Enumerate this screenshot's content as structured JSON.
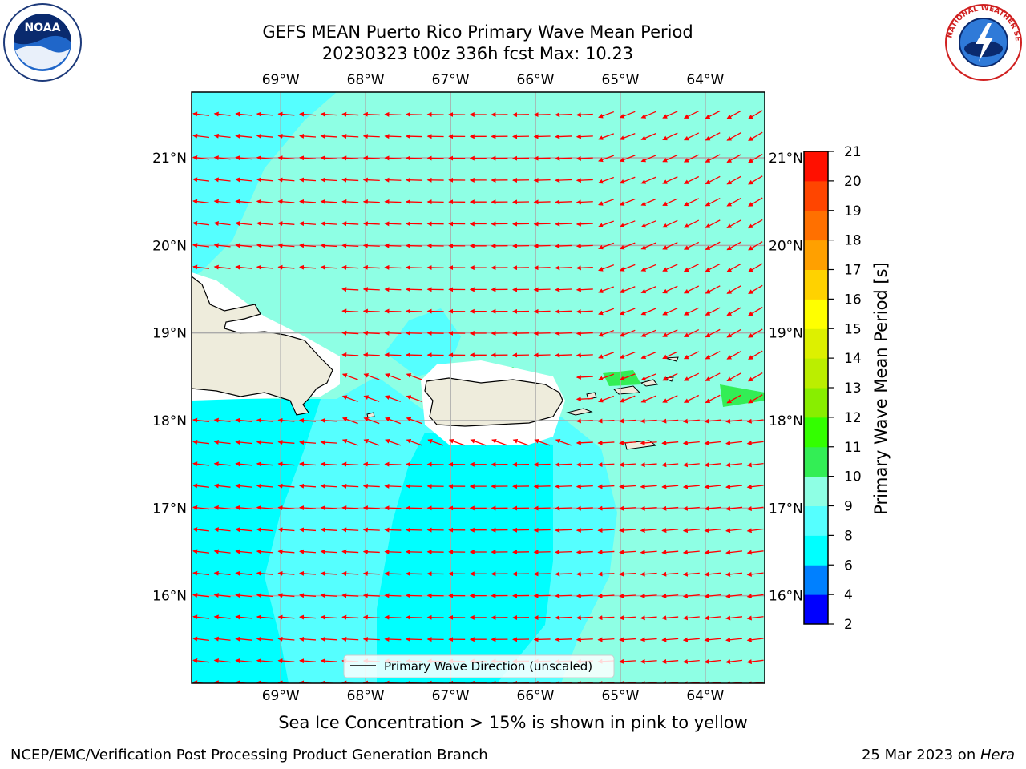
{
  "header": {
    "title_line1": "GEFS MEAN Puerto Rico Primary Wave Mean Period",
    "title_line2": "20230323 t00z 336h fcst   Max: 10.23"
  },
  "logos": {
    "left": "noaa-logo",
    "right": "nws-logo",
    "left_text": "NOAA",
    "right_text": "NATIONAL WEATHER SERVICE"
  },
  "map": {
    "lon_labels": [
      "69°W",
      "68°W",
      "67°W",
      "66°W",
      "65°W",
      "64°W"
    ],
    "lat_labels": [
      "21°N",
      "20°N",
      "19°N",
      "18°N",
      "17°N",
      "16°N"
    ],
    "lon_values": [
      -69,
      -68,
      -67,
      -66,
      -65,
      -64
    ],
    "lat_values": [
      21,
      20,
      19,
      18,
      17,
      16
    ],
    "extent": {
      "lon_min": -70.05,
      "lon_max": -63.3,
      "lat_min": 15.0,
      "lat_max": 21.75
    },
    "arrow_color": "#ff0000",
    "land_color": "#eeecdc"
  },
  "legend": {
    "label": "Primary Wave Direction (unscaled)"
  },
  "colorbar": {
    "label": "Primary Wave Mean Period [s]",
    "ticks": [
      "2",
      "4",
      "6",
      "8",
      "9",
      "10",
      "11",
      "12",
      "13",
      "14",
      "15",
      "16",
      "17",
      "18",
      "19",
      "20",
      "21"
    ],
    "colors": [
      "#0000ff",
      "#0080ff",
      "#00ffff",
      "#55ffff",
      "#8effe4",
      "#33ee55",
      "#33ff00",
      "#88ee00",
      "#bbee00",
      "#ddf000",
      "#ffff00",
      "#ffd200",
      "#ffa000",
      "#ff7000",
      "#ff4500",
      "#ff1000"
    ]
  },
  "footer": {
    "ice_note": "Sea Ice Concentration > 15% is shown in pink to yellow",
    "branch": "NCEP/EMC/Verification Post Processing Product Generation Branch",
    "date": "25 Mar 2023 on ",
    "host": "Hera"
  }
}
